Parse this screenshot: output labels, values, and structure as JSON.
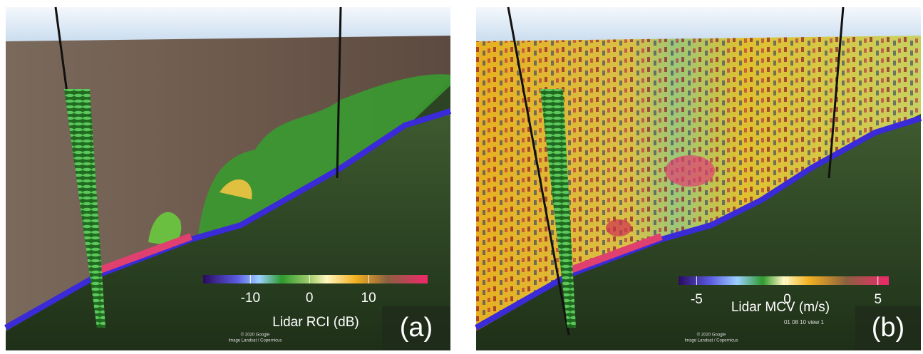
{
  "panels": [
    {
      "label": "(a)",
      "colorbar": {
        "title": "Lidar RCI (dB)",
        "lim": [
          -18,
          20
        ],
        "ticks": [
          -10,
          0,
          10
        ]
      },
      "credits": [
        "© 2020 Google",
        "Image Landsat / Copernicus"
      ]
    },
    {
      "label": "(b)",
      "colorbar": {
        "title": "Lidar MCV (m/s)",
        "lim": [
          -6,
          5.6
        ],
        "ticks": [
          -5,
          0,
          5
        ]
      },
      "credits": [
        "© 2020 Google",
        "Image Landsat / Copernicus"
      ],
      "caption": "01 08 10 view 1"
    }
  ]
}
